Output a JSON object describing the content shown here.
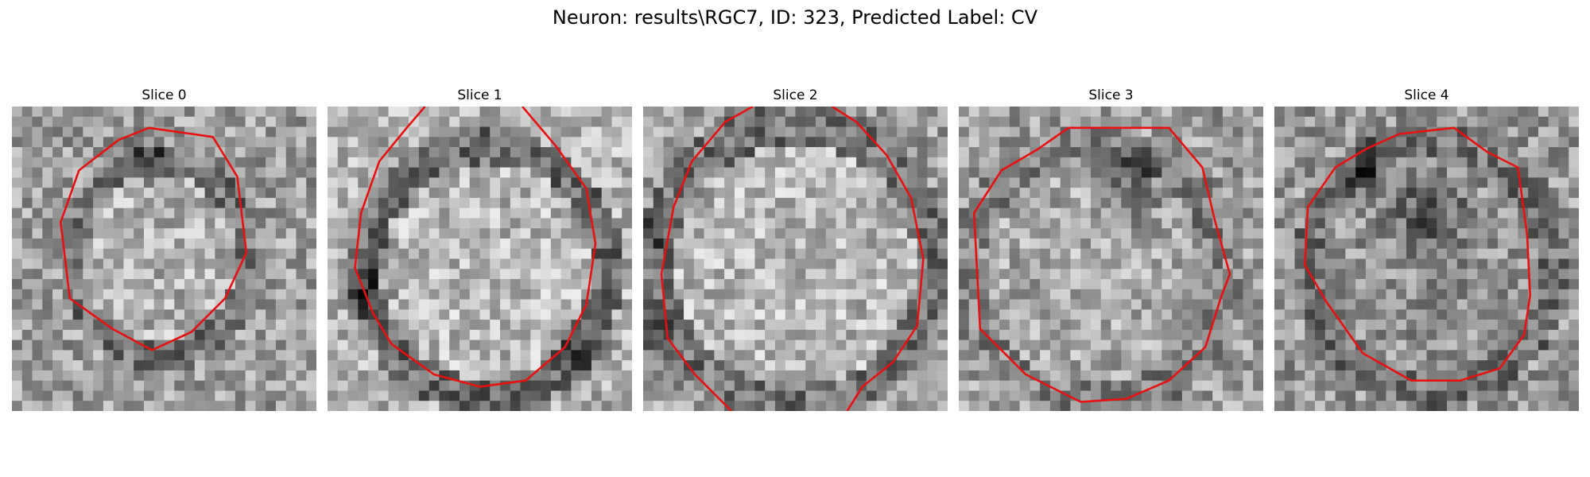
{
  "figure": {
    "title": "Neuron: results\\RGC7, ID: 323, Predicted Label: CV"
  },
  "colors": {
    "contour": "#e81010",
    "background": "#ffffff"
  },
  "panels": [
    {
      "title": "Slice 0"
    },
    {
      "title": "Slice 1"
    },
    {
      "title": "Slice 2"
    },
    {
      "title": "Slice 3"
    },
    {
      "title": "Slice 4"
    }
  ]
}
